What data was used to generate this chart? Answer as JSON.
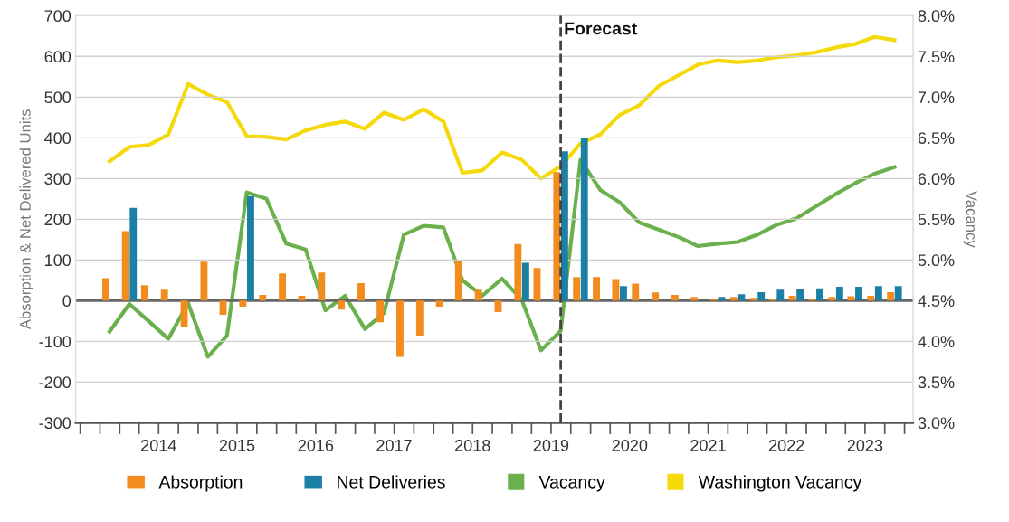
{
  "chart_data": {
    "type": "bar",
    "x": [
      "2013-11-15",
      "2014-02-15",
      "2014-05-15",
      "2014-08-15",
      "2014-11-15",
      "2015-02-15",
      "2015-05-15",
      "2015-08-15",
      "2015-11-15",
      "2016-02-15",
      "2016-05-15",
      "2016-08-15",
      "2016-11-15",
      "2017-02-15",
      "2017-05-15",
      "2017-08-15",
      "2017-11-15",
      "2018-02-15",
      "2018-05-15",
      "2018-08-15",
      "2018-11-15",
      "2019-02-15",
      "2019-05-15",
      "2019-08-15",
      "2019-11-15",
      "2020-02-15",
      "2020-05-15",
      "2020-08-15",
      "2020-11-15",
      "2021-02-15",
      "2021-05-15",
      "2021-08-15",
      "2021-11-15",
      "2022-02-15",
      "2022-05-15",
      "2022-08-15",
      "2022-11-15",
      "2023-02-15",
      "2023-05-15",
      "2023-08-15",
      "2023-11-15"
    ],
    "series": [
      {
        "name": "Absorption",
        "color": "#f28c1e",
        "values": [
          55,
          171,
          38,
          27,
          -64,
          96,
          -35,
          -15,
          14,
          67,
          12,
          69,
          -22,
          43,
          -53,
          -138,
          -86,
          -15,
          98,
          27,
          -28,
          139,
          80,
          316,
          58,
          58,
          53,
          42,
          20,
          14,
          9,
          3,
          9,
          7,
          3,
          12,
          5,
          9,
          11,
          12,
          21
        ]
      },
      {
        "name": "Net Deliveries",
        "color": "#1b7fa6",
        "values": [
          null,
          228,
          null,
          null,
          null,
          null,
          null,
          257,
          null,
          null,
          null,
          null,
          null,
          null,
          null,
          null,
          null,
          null,
          null,
          null,
          null,
          93,
          null,
          367,
          400,
          null,
          36,
          null,
          null,
          null,
          null,
          9,
          16,
          21,
          27,
          29,
          30,
          34,
          34,
          36,
          36
        ]
      },
      {
        "name": "Vacancy",
        "type": "line",
        "axis": "y2",
        "color": "#6ab04c",
        "values": [
          4.12,
          4.46,
          4.25,
          4.03,
          4.47,
          3.81,
          4.07,
          5.83,
          5.75,
          5.2,
          5.13,
          4.38,
          4.56,
          4.15,
          4.35,
          5.31,
          5.42,
          5.4,
          4.75,
          4.56,
          4.77,
          4.51,
          3.89,
          4.13,
          6.23,
          5.86,
          5.71,
          5.46,
          5.37,
          5.28,
          5.17,
          5.2,
          5.22,
          5.31,
          5.43,
          5.51,
          5.66,
          5.81,
          5.94,
          6.06,
          6.14
        ]
      },
      {
        "name": "Washington Vacancy",
        "type": "line",
        "axis": "y2",
        "color": "#f5d90a",
        "values": [
          6.21,
          6.39,
          6.41,
          6.54,
          7.16,
          7.03,
          6.94,
          6.52,
          6.51,
          6.48,
          6.59,
          6.66,
          6.7,
          6.61,
          6.81,
          6.72,
          6.85,
          6.7,
          6.07,
          6.1,
          6.32,
          6.23,
          6.0,
          6.15,
          6.43,
          6.54,
          6.78,
          6.9,
          7.14,
          7.27,
          7.4,
          7.45,
          7.43,
          7.45,
          7.49,
          7.51,
          7.55,
          7.61,
          7.65,
          7.74,
          7.7
        ]
      }
    ],
    "ylabel": "Absorption & Net Delivered Units",
    "y2label": "Vacancy",
    "xlim": [
      "2013-06-10",
      "2024-02-10"
    ],
    "xticks": [
      {
        "value": "2013-07-01",
        "label": null
      },
      {
        "value": "2013-10-01",
        "label": null
      },
      {
        "value": "2014-01-01",
        "label": null
      },
      {
        "value": "2014-04-01",
        "label": null
      },
      {
        "value": "2014-07-01",
        "label": "2014"
      },
      {
        "value": "2014-10-01",
        "label": null
      },
      {
        "value": "2015-01-01",
        "label": null
      },
      {
        "value": "2015-04-01",
        "label": null
      },
      {
        "value": "2015-07-01",
        "label": "2015"
      },
      {
        "value": "2015-10-01",
        "label": null
      },
      {
        "value": "2016-01-01",
        "label": null
      },
      {
        "value": "2016-04-01",
        "label": null
      },
      {
        "value": "2016-07-01",
        "label": "2016"
      },
      {
        "value": "2016-10-01",
        "label": null
      },
      {
        "value": "2017-01-01",
        "label": null
      },
      {
        "value": "2017-04-01",
        "label": null
      },
      {
        "value": "2017-07-01",
        "label": "2017"
      },
      {
        "value": "2017-10-01",
        "label": null
      },
      {
        "value": "2018-01-01",
        "label": null
      },
      {
        "value": "2018-04-01",
        "label": null
      },
      {
        "value": "2018-07-01",
        "label": "2018"
      },
      {
        "value": "2018-10-01",
        "label": null
      },
      {
        "value": "2019-01-01",
        "label": null
      },
      {
        "value": "2019-04-01",
        "label": null
      },
      {
        "value": "2019-07-01",
        "label": "2019"
      },
      {
        "value": "2019-10-01",
        "label": null
      },
      {
        "value": "2020-01-01",
        "label": null
      },
      {
        "value": "2020-04-01",
        "label": null
      },
      {
        "value": "2020-07-01",
        "label": "2020"
      },
      {
        "value": "2020-10-01",
        "label": null
      },
      {
        "value": "2021-01-01",
        "label": null
      },
      {
        "value": "2021-04-01",
        "label": null
      },
      {
        "value": "2021-07-01",
        "label": "2021"
      },
      {
        "value": "2021-10-01",
        "label": null
      },
      {
        "value": "2022-01-01",
        "label": null
      },
      {
        "value": "2022-04-01",
        "label": null
      },
      {
        "value": "2022-07-01",
        "label": "2022"
      },
      {
        "value": "2022-10-01",
        "label": null
      },
      {
        "value": "2023-01-01",
        "label": null
      },
      {
        "value": "2023-04-01",
        "label": null
      },
      {
        "value": "2023-07-01",
        "label": "2023"
      },
      {
        "value": "2023-10-01",
        "label": null
      },
      {
        "value": "2024-01-01",
        "label": null
      }
    ],
    "ylim": [
      -300,
      700
    ],
    "yticks": [
      -300,
      -200,
      -100,
      0,
      100,
      200,
      300,
      400,
      500,
      600,
      700
    ],
    "y2lim": [
      3.0,
      8.0
    ],
    "y2ticks": [
      {
        "value": 3.0,
        "label": "3.0%"
      },
      {
        "value": 3.5,
        "label": "3.5%"
      },
      {
        "value": 4.0,
        "label": "4.0%"
      },
      {
        "value": 4.5,
        "label": "4.5%"
      },
      {
        "value": 5.0,
        "label": "5.0%"
      },
      {
        "value": 5.5,
        "label": "5.5%"
      },
      {
        "value": 6.0,
        "label": "6.0%"
      },
      {
        "value": 6.5,
        "label": "6.5%"
      },
      {
        "value": 7.0,
        "label": "7.0%"
      },
      {
        "value": 7.5,
        "label": "7.5%"
      },
      {
        "value": 8.0,
        "label": "8.0%"
      }
    ],
    "ref_lines": [
      {
        "axis": "x",
        "value": "2019-08-15",
        "label": "Forecast",
        "color": "#444444",
        "line_style": "dashed"
      },
      {
        "axis": "y",
        "value": 0,
        "color": "#666666",
        "line_style": "solid"
      }
    ],
    "grid": "y",
    "legend": "bottom",
    "marker": "none",
    "line_style": "solid"
  }
}
